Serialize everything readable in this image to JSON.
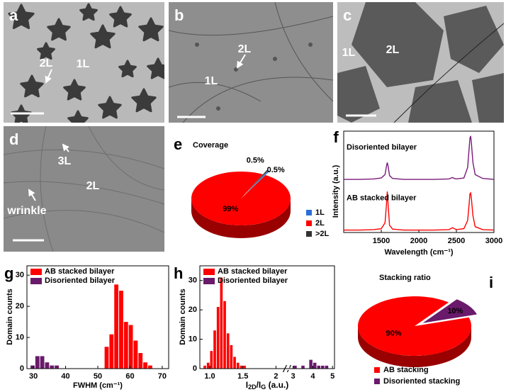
{
  "images": [
    {
      "panel": "a",
      "labels": [
        "2L",
        "1L"
      ]
    },
    {
      "panel": "b",
      "labels": [
        "2L",
        "1L"
      ]
    },
    {
      "panel": "c",
      "labels": [
        "1L",
        "2L"
      ]
    },
    {
      "panel": "d",
      "labels": [
        "3L",
        "2L",
        "wrinkle"
      ]
    }
  ],
  "chart_data": [
    {
      "type": "pie",
      "panel": "e",
      "title": "Coverage",
      "categories": [
        "1L",
        "2L",
        ">2L"
      ],
      "values": [
        0.5,
        99,
        0.5
      ],
      "value_labels": [
        "0.5%",
        "99%",
        "0.5%"
      ],
      "colors": [
        "#2a6fd6",
        "#ff0000",
        "#333333"
      ]
    },
    {
      "type": "line",
      "panel": "f",
      "x_label": "Wavelength (cm⁻¹)",
      "y_label": "Intensity (a.u.)",
      "x": [
        1000,
        1200,
        1400,
        1500,
        1550,
        1570,
        1580,
        1590,
        1610,
        1650,
        1800,
        2000,
        2200,
        2400,
        2450,
        2470,
        2500,
        2600,
        2650,
        2670,
        2680,
        2690,
        2700,
        2720,
        2750,
        2850,
        3000
      ],
      "series": [
        {
          "name": "Disoriented bilayer",
          "color": "#7a1a7a",
          "values": [
            1.1,
            1.1,
            1.11,
            1.13,
            1.2,
            1.38,
            1.45,
            1.38,
            1.18,
            1.12,
            1.1,
            1.1,
            1.1,
            1.11,
            1.14,
            1.12,
            1.11,
            1.13,
            1.35,
            1.75,
            1.95,
            2.0,
            1.85,
            1.45,
            1.2,
            1.12,
            1.1
          ]
        },
        {
          "name": "AB stacked bilayer",
          "color": "#ff0000",
          "values": [
            0.05,
            0.05,
            0.06,
            0.08,
            0.2,
            0.6,
            0.85,
            0.6,
            0.15,
            0.07,
            0.05,
            0.05,
            0.05,
            0.06,
            0.1,
            0.08,
            0.06,
            0.08,
            0.25,
            0.6,
            0.8,
            0.82,
            0.7,
            0.35,
            0.12,
            0.06,
            0.05
          ]
        }
      ],
      "xlim": [
        1000,
        3000
      ],
      "xticks": [
        1500,
        2000,
        2500,
        3000
      ],
      "ylim": [
        0,
        2.1
      ]
    },
    {
      "type": "histogram",
      "panel": "g",
      "x_label": "FWHM (cm⁻¹)",
      "y_label": "Domain counts",
      "series": [
        {
          "name": "AB stacked bilayer",
          "color": "#ff0000",
          "bins": [
            52,
            53.5,
            55,
            56.5,
            58,
            59.5,
            61,
            62.5,
            64,
            65.5,
            67
          ],
          "values": [
            7,
            11,
            27,
            25,
            15,
            14,
            9,
            5,
            2,
            1
          ]
        },
        {
          "name": "Disoriented bilayer",
          "color": "#6a1a6a",
          "bins": [
            29,
            30.5,
            32,
            33.5,
            35,
            36.5,
            38
          ],
          "values": [
            1,
            4,
            4,
            2,
            1,
            1
          ]
        }
      ],
      "xlim": [
        28,
        72
      ],
      "xticks": [
        30,
        40,
        50,
        60,
        70
      ],
      "ylim": [
        0,
        33
      ],
      "yticks": [
        0,
        10,
        20,
        30
      ]
    },
    {
      "type": "histogram",
      "panel": "h",
      "x_label": [
        "I",
        "2D",
        "/I",
        "G",
        " (a.u.)"
      ],
      "y_label": "Domain counts",
      "series": [
        {
          "name": "AB stacked bilayer",
          "color": "#ff0000",
          "bins": [
            0.9,
            0.95,
            1.0,
            1.05,
            1.1,
            1.15,
            1.2,
            1.25,
            1.3,
            1.35,
            1.4,
            1.45,
            1.5,
            1.55
          ],
          "values": [
            1,
            2,
            6,
            13,
            21,
            31,
            23,
            12,
            8,
            4,
            2,
            1,
            1
          ]
        },
        {
          "name": "Disoriented bilayer",
          "color": "#6a1a6a",
          "bins": [
            3.0,
            3.2,
            3.4,
            3.6,
            3.8,
            4.0,
            4.2,
            4.4,
            4.6,
            4.8
          ],
          "values": [
            1,
            0,
            1,
            0,
            3,
            2,
            1,
            1,
            1
          ]
        }
      ],
      "xlim": [
        0.85,
        5.1
      ],
      "x_break": [
        2.15,
        2.85
      ],
      "xticks": [
        {
          "value": 1,
          "label": "1.0"
        },
        1.5,
        2,
        3,
        4,
        5
      ],
      "ylim": [
        0,
        35
      ],
      "yticks": [
        0,
        10,
        20,
        30
      ]
    },
    {
      "type": "pie",
      "panel": "i",
      "title": "Stacking ratio",
      "categories": [
        "AB stacking",
        "Disoriented stacking"
      ],
      "values": [
        90,
        10
      ],
      "value_labels": [
        "90%",
        "10%"
      ],
      "colors": [
        "#ff0000",
        "#6a1a6a"
      ]
    }
  ]
}
